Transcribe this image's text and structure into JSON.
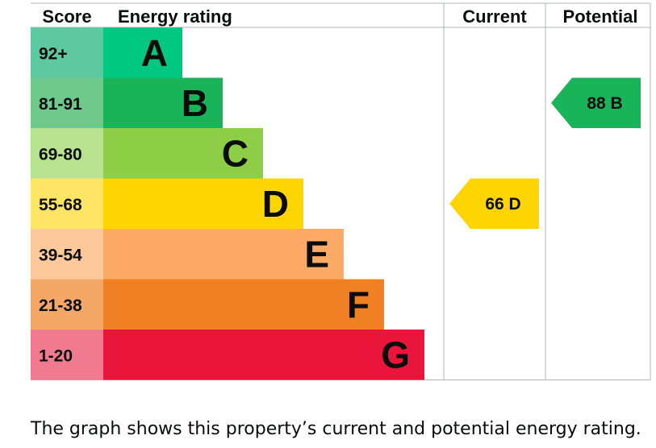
{
  "chart_data": {
    "type": "bar",
    "headers": {
      "score": "Score",
      "rating": "Energy rating",
      "current": "Current",
      "potential": "Potential"
    },
    "bands": [
      {
        "score": "92+",
        "letter": "A",
        "color": "#008054",
        "score_bg": "#5ec9a0",
        "bar_color": "#00c781",
        "relative_length": 1
      },
      {
        "score": "81-91",
        "letter": "B",
        "color": "#19b459",
        "score_bg": "#6fc98c",
        "bar_color": "#19b459",
        "relative_length": 2
      },
      {
        "score": "69-80",
        "letter": "C",
        "color": "#8dce46",
        "score_bg": "#b9e290",
        "bar_color": "#8dce46",
        "relative_length": 3
      },
      {
        "score": "55-68",
        "letter": "D",
        "color": "#ffd500",
        "score_bg": "#ffe566",
        "bar_color": "#ffd500",
        "relative_length": 4
      },
      {
        "score": "39-54",
        "letter": "E",
        "color": "#fcaa65",
        "score_bg": "#fdc89a",
        "bar_color": "#fcaa65",
        "relative_length": 5
      },
      {
        "score": "21-38",
        "letter": "F",
        "color": "#ef8023",
        "score_bg": "#f3a868",
        "bar_color": "#ef8023",
        "relative_length": 6
      },
      {
        "score": "1-20",
        "letter": "G",
        "color": "#e9153b",
        "score_bg": "#f07a8f",
        "bar_color": "#e9153b",
        "relative_length": 7
      }
    ],
    "current": {
      "value": 66,
      "letter": "D",
      "label": "66  D",
      "color": "#ffd500"
    },
    "potential": {
      "value": 88,
      "letter": "B",
      "label": "88  B",
      "color": "#19b459"
    }
  },
  "caption": "The graph shows this property’s current and potential energy rating."
}
